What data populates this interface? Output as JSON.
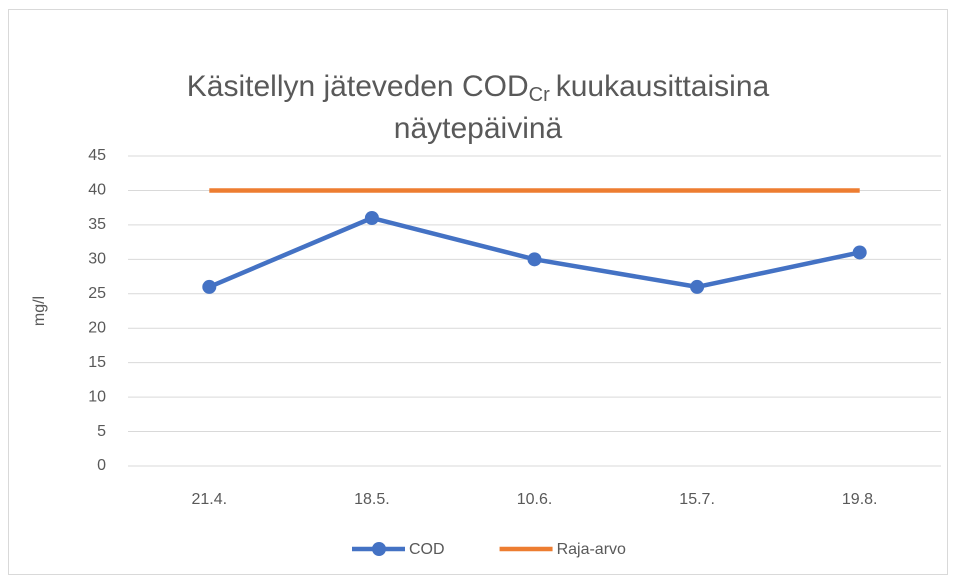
{
  "chart_data": {
    "type": "line",
    "title": [
      "Käsitellyn jäteveden COD",
      "Cr",
      "kuukausittaisina",
      "näytepäivinä"
    ],
    "y_label": "mg/l",
    "categories": [
      "21.4.",
      "18.5.",
      "10.6.",
      "15.7.",
      "19.8."
    ],
    "series": [
      {
        "name": "COD",
        "color": "#4472c4",
        "values": [
          26,
          36,
          30,
          26,
          31
        ],
        "markers": true
      },
      {
        "name": "Raja-arvo",
        "color": "#ed7d31",
        "values": [
          40,
          40,
          40,
          40,
          40
        ],
        "markers": false
      }
    ],
    "ylim": [
      0,
      45
    ],
    "yticks": [
      0,
      5,
      10,
      15,
      20,
      25,
      30,
      35,
      40,
      45
    ],
    "grid": true,
    "legend": "bottom"
  }
}
